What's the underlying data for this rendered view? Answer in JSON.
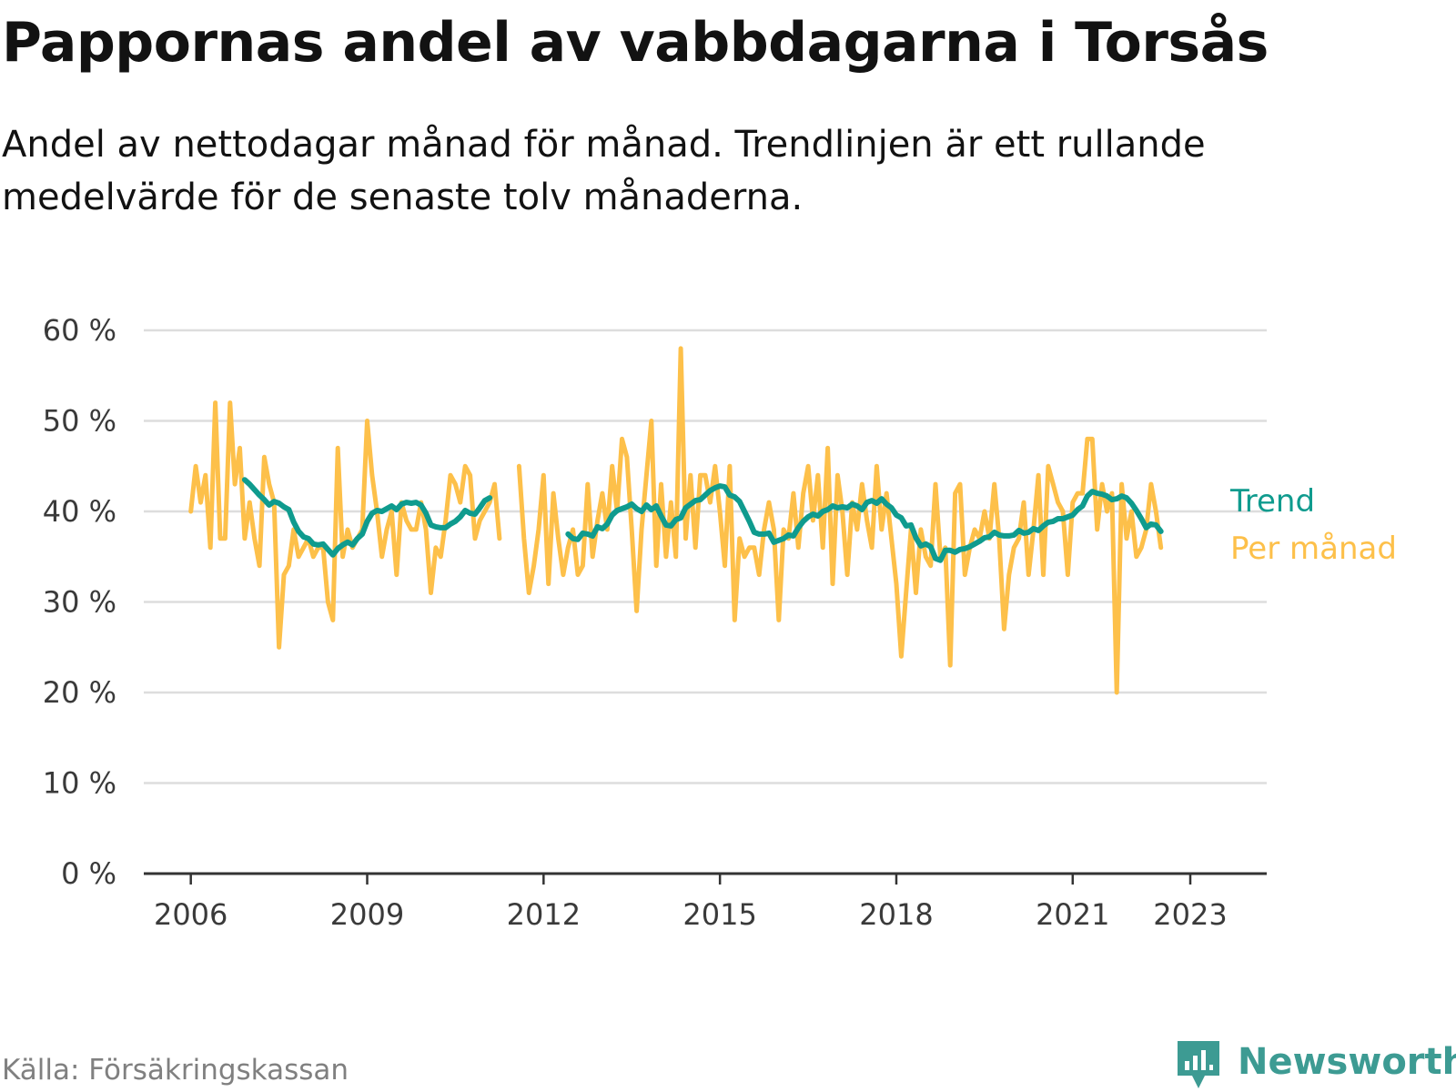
{
  "header": {
    "title": "Pappornas andel av vabbdagarna i Torsås",
    "subtitle": "Andel av nettodagar månad för månad. Trendlinjen är ett rullande medelvärde för de senaste tolv månaderna."
  },
  "footer": {
    "source": "Källa: Försäkringskassan",
    "brand": "Newsworthy"
  },
  "colors": {
    "trend": "#0f9b8e",
    "monthly": "#fdc04a",
    "grid": "#dddddd",
    "axis": "#333333",
    "brand": "#3d9b93"
  },
  "chart_data": {
    "type": "line",
    "x_unit": "year (decimal)",
    "y_unit": "percent",
    "ylim": [
      0,
      60
    ],
    "xlim": [
      2005.2,
      2024.3
    ],
    "y_ticks": [
      0,
      10,
      20,
      30,
      40,
      50,
      60
    ],
    "y_tick_labels": [
      "0 %",
      "10 %",
      "20 %",
      "30 %",
      "40 %",
      "50 %",
      "60 %"
    ],
    "x_ticks": [
      2006,
      2009,
      2012,
      2015,
      2018,
      2021,
      2023
    ],
    "x_tick_labels": [
      "2006",
      "2009",
      "2012",
      "2015",
      "2018",
      "2021",
      "2023"
    ],
    "grid": true,
    "legend": "right",
    "series": [
      {
        "name": "Per månad",
        "color_key": "monthly",
        "segments": [
          {
            "start": 2006.0,
            "values": [
              40,
              45,
              41,
              44,
              36,
              52,
              37,
              37,
              52,
              43,
              47,
              37,
              41,
              37,
              34,
              46,
              43,
              41,
              25,
              33,
              34,
              38,
              35,
              36,
              37,
              35,
              36,
              36,
              30,
              28,
              47,
              35,
              38,
              36,
              37,
              38,
              50,
              44,
              40,
              35,
              38,
              40,
              33,
              41,
              39,
              38,
              38,
              41,
              38,
              31,
              36,
              35,
              39,
              44,
              43,
              41,
              45,
              44,
              37,
              39,
              40,
              41,
              43,
              37
            ]
          },
          {
            "start": 2011.5833,
            "values": [
              45,
              37,
              31,
              34,
              38,
              44,
              32,
              42,
              37,
              33,
              36,
              38,
              33,
              34,
              43,
              35,
              39,
              42,
              38,
              45,
              40,
              48,
              46,
              38,
              29,
              38,
              44,
              50,
              34,
              43,
              35,
              41,
              35,
              58,
              37,
              44,
              36,
              44,
              44,
              41,
              45,
              40,
              34,
              45,
              28,
              37,
              35,
              36,
              36,
              33,
              38,
              41,
              38,
              28,
              38,
              37,
              42,
              36,
              42,
              45,
              39,
              44,
              36,
              47,
              32,
              44,
              40,
              33,
              41,
              38,
              43,
              39,
              36,
              45,
              38,
              42,
              37,
              32,
              24,
              31,
              38,
              31,
              38,
              35,
              34,
              43,
              35,
              36,
              23,
              42,
              43,
              33,
              36,
              38,
              37,
              40,
              37,
              43,
              37,
              27,
              33,
              36,
              37,
              41,
              33,
              38,
              44,
              33,
              45,
              43,
              41,
              40,
              33,
              41,
              42,
              42,
              48,
              48,
              38,
              43,
              40,
              42,
              20,
              43,
              37,
              40,
              35,
              36,
              38,
              43,
              40,
              36
            ]
          }
        ]
      },
      {
        "name": "Trend",
        "color_key": "trend",
        "segments": [
          {
            "start": 2006.9167,
            "values": [
              43.5,
              43.0,
              42.4,
              41.8,
              41.3,
              40.7,
              41.1,
              40.9,
              40.5,
              40.2,
              38.8,
              37.8,
              37.2,
              37.0,
              36.4,
              36.3,
              36.4,
              35.8,
              35.2,
              35.9,
              36.3,
              36.6,
              36.3,
              37.0,
              37.5,
              38.9,
              39.8,
              40.1,
              40.0,
              40.3,
              40.6,
              40.2,
              40.8,
              41.0,
              40.9,
              41.0,
              40.7,
              39.8,
              38.5,
              38.3,
              38.2,
              38.2,
              38.6,
              38.9,
              39.4,
              40.1,
              39.8,
              39.7,
              40.4,
              41.2,
              41.5
            ]
          },
          {
            "start": 2012.4167,
            "values": [
              37.5,
              37.0,
              36.9,
              37.6,
              37.5,
              37.3,
              38.3,
              38.1,
              38.6,
              39.6,
              40.1,
              40.3,
              40.5,
              40.8,
              40.3,
              40.0,
              40.7,
              40.2,
              40.6,
              39.5,
              38.5,
              38.4,
              39.1,
              39.3,
              40.4,
              40.8,
              41.2,
              41.3,
              41.8,
              42.3,
              42.6,
              42.8,
              42.7,
              41.8,
              41.6,
              41.1,
              40.0,
              38.9,
              37.7,
              37.5,
              37.5,
              37.6,
              36.6,
              36.8,
              37.0,
              37.4,
              37.3,
              38.2,
              38.9,
              39.4,
              39.7,
              39.5,
              40.0,
              40.2,
              40.6,
              40.4,
              40.5,
              40.4,
              40.8,
              40.6,
              40.2,
              41.0,
              41.2,
              40.9,
              41.4,
              40.8,
              40.4,
              39.6,
              39.3,
              38.4,
              38.5,
              37.1,
              36.2,
              36.4,
              36.1,
              34.8,
              34.6,
              35.7,
              35.7,
              35.5,
              35.8,
              35.9,
              36.1,
              36.4,
              36.7,
              37.1,
              37.2,
              37.7,
              37.4,
              37.3,
              37.3,
              37.4,
              37.9,
              37.6,
              37.7,
              38.1,
              37.9,
              38.4,
              38.8,
              38.9,
              39.2,
              39.2,
              39.4,
              39.6,
              40.2,
              40.6,
              41.7,
              42.2,
              42.0,
              41.9,
              41.7,
              41.3,
              41.4,
              41.7,
              41.5,
              40.9,
              40.1,
              39.2,
              38.2,
              38.6,
              38.5,
              37.8
            ]
          }
        ]
      }
    ]
  }
}
